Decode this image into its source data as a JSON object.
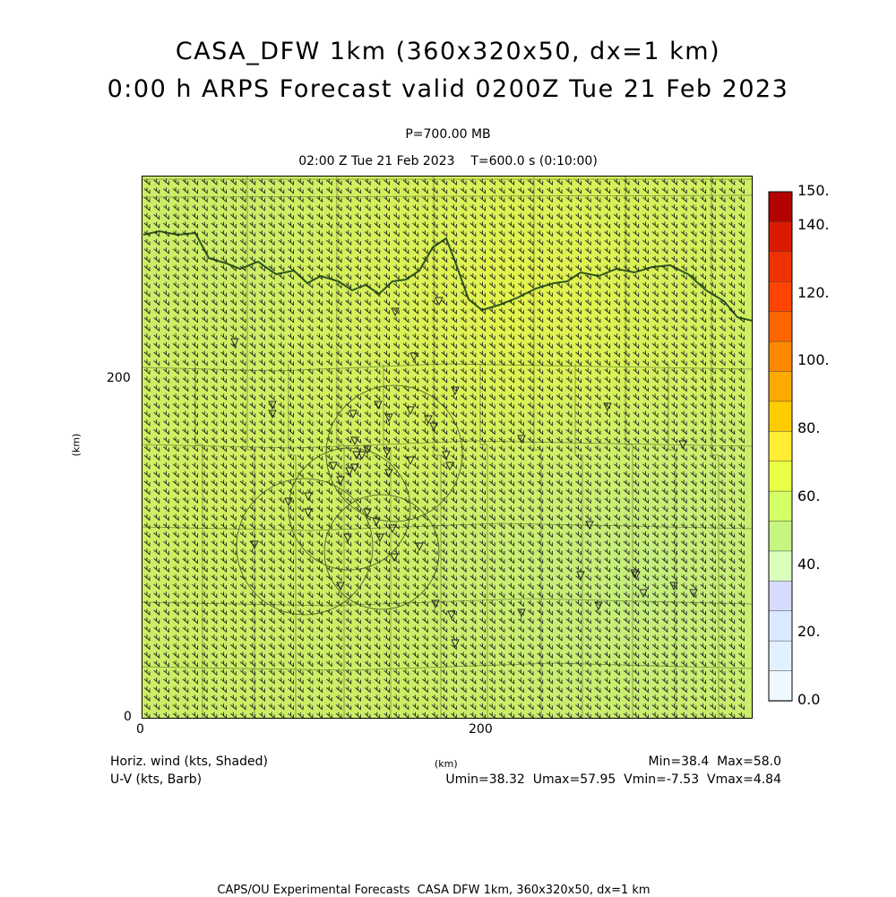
{
  "title_line1": "CASA_DFW 1km (360x320x50, dx=1 km)",
  "title_line2": "0:00 h ARPS Forecast valid 0200Z Tue 21 Feb 2023",
  "pressure_label": "P=700.00 MB",
  "time_label": "02:00 Z Tue 21 Feb 2023    T=600.0 s (0:10:00)",
  "axes": {
    "x_ticks": [
      "0",
      "200"
    ],
    "y_ticks": [
      "0",
      "200"
    ],
    "x_unit": "(km)",
    "y_unit": "(km)"
  },
  "colorbar": {
    "labels": [
      "150.",
      "140.",
      "120.",
      "100.",
      "80.",
      "60.",
      "40.",
      "20.",
      "0.0"
    ],
    "colors": [
      "#b30000",
      "#d91a00",
      "#ee3300",
      "#ff4400",
      "#ff6600",
      "#ff8800",
      "#ffaa00",
      "#ffcc00",
      "#ffee33",
      "#e9ff44",
      "#d4ff66",
      "#c6f580",
      "#d9ffbb",
      "#d6dcff",
      "#dae9ff",
      "#e2f1ff",
      "#eef8ff"
    ]
  },
  "field_colors": {
    "base": "#ccee66",
    "north": "#e2f24e",
    "southeast": "#c6f07a",
    "county_lines": "#6f8f3a",
    "river": "#2f5a1a",
    "barbs": "#222222"
  },
  "footer": {
    "left1": "Horiz. wind (kts, Shaded)",
    "left2": "U-V (kts, Barb)",
    "center": "(km)",
    "right1": "Min=38.4  Max=58.0",
    "right2": "Umin=38.32  Umax=57.95  Vmin=-7.53  Vmax=4.84",
    "bottom": "CAPS/OU Experimental Forecasts  CASA DFW 1km, 360x320x50, dx=1 km"
  }
}
